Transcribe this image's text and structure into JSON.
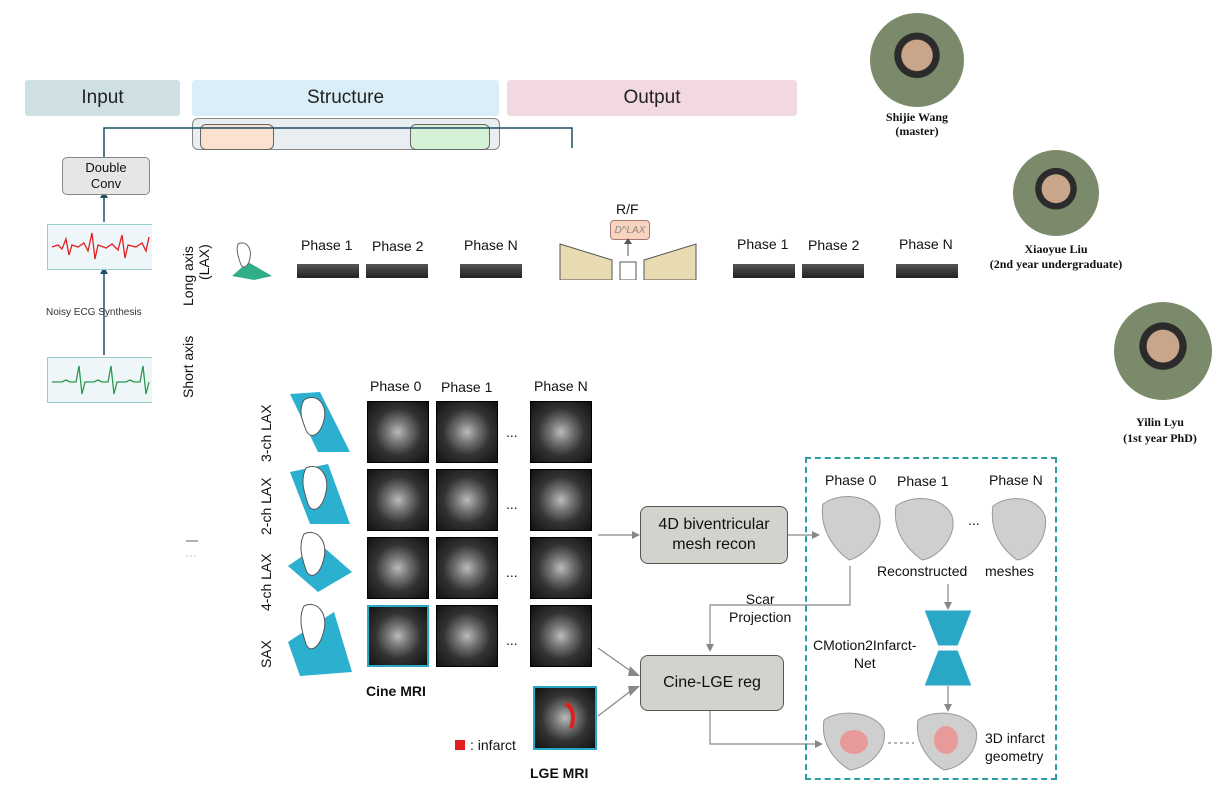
{
  "headers": {
    "input": "Input",
    "structure": "Structure",
    "output": "Output"
  },
  "left_pipeline": {
    "double_conv": "Double\nConv",
    "noisy_ecg": "Noisy ECG Synthesis",
    "long_axis": "Long axis",
    "lax_suffix": "(LAX)",
    "short_axis": "Short axis",
    "phases_top": [
      "Phase 1",
      "Phase 2",
      "Phase N"
    ],
    "phases_top_right": [
      "Phase 1",
      "Phase 2",
      "Phase N"
    ],
    "rf_label": "R/F",
    "disc_label": "D^LAX"
  },
  "people": [
    {
      "name": "Shijie Wang",
      "role": "(master)"
    },
    {
      "name": "Xiaoyue Liu",
      "role": "(2nd year undergraduate)"
    },
    {
      "name": "Yilin Lyu",
      "role": "(1st year PhD)"
    }
  ],
  "main": {
    "phases": [
      "Phase 0",
      "Phase 1",
      "Phase N"
    ],
    "views": [
      "3-ch LAX",
      "2-ch LAX",
      "4-ch LAX",
      "SAX"
    ],
    "ellipsis": "...",
    "cine_label": "Cine MRI",
    "lge_label": "LGE MRI",
    "infarct_legend": ": infarct",
    "recon_box": "4D biventricular\nmesh recon",
    "reg_box": "Cine-LGE reg",
    "scar_projection": "Scar\nProjection",
    "out_phases": [
      "Phase 0",
      "Phase 1",
      "Phase N"
    ],
    "reconstructed": "Reconstructed",
    "meshes": "meshes",
    "net_label": "CMotion2Infarct-\nNet",
    "infarct_geometry": "3D infarct\ngeometry"
  },
  "colors": {
    "input_hdr": "#cfe0e4",
    "structure_hdr": "#d9eef8",
    "output_hdr": "#f2d9e0",
    "teal": "#2aa7c7",
    "dashed_border": "#2a9ea0",
    "infarct": "#e02020"
  }
}
